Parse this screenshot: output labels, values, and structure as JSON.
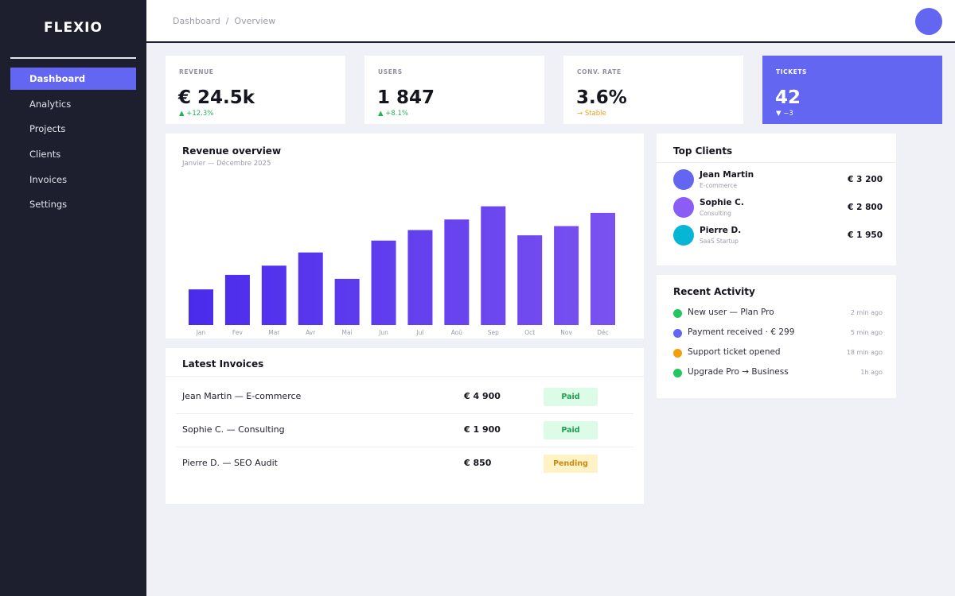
{
  "app": {
    "name": "FLEXIO"
  },
  "colors": {
    "accent": "#6366f1",
    "sidebar": "#1d1f2e",
    "positive": "#22b05a",
    "neutral": "#f0a020",
    "bar_gradient_start": "#4a2bec",
    "bar_gradient_end": "#7a52f0"
  },
  "sidebar": {
    "items": [
      {
        "label": "Dashboard",
        "active": true
      },
      {
        "label": "Analytics",
        "active": false
      },
      {
        "label": "Projects",
        "active": false
      },
      {
        "label": "Clients",
        "active": false
      },
      {
        "label": "Invoices",
        "active": false
      },
      {
        "label": "Settings",
        "active": false
      }
    ]
  },
  "header": {
    "breadcrumb": [
      "Dashboard",
      "Overview"
    ],
    "breadcrumb_separator": "/"
  },
  "kpis": [
    {
      "label": "REVENUE",
      "value": "€ 24.5k",
      "delta": "▲ +12.3%",
      "trend": "up"
    },
    {
      "label": "USERS",
      "value": "1 847",
      "delta": "▲ +8.1%",
      "trend": "up"
    },
    {
      "label": "CONV. RATE",
      "value": "3.6%",
      "delta": "→ Stable",
      "trend": "flat"
    },
    {
      "label": "TICKETS",
      "value": "42",
      "delta": "▼ −3",
      "trend": "down"
    }
  ],
  "revenue_card": {
    "title": "Revenue overview",
    "subtitle": "Janvier — Décembre 2025"
  },
  "chart_data": {
    "type": "bar",
    "categories": [
      "Jan",
      "Fev",
      "Mar",
      "Avr",
      "Mai",
      "Jun",
      "Jul",
      "Aoû",
      "Sep",
      "Oct",
      "Nov",
      "Déc"
    ],
    "values": [
      27,
      38,
      45,
      55,
      35,
      64,
      72,
      80,
      90,
      68,
      75,
      85
    ],
    "ylim": [
      0,
      100
    ],
    "title": "",
    "xlabel": "",
    "ylabel": "",
    "grid": false,
    "legend": "none"
  },
  "top_clients": {
    "title": "Top Clients",
    "items": [
      {
        "name": "Jean Martin",
        "type": "E-commerce",
        "amount": "€ 3 200",
        "color": "#6366f1"
      },
      {
        "name": "Sophie C.",
        "type": "Consulting",
        "amount": "€ 2 800",
        "color": "#8b5cf6"
      },
      {
        "name": "Pierre D.",
        "type": "SaaS Startup",
        "amount": "€ 1 950",
        "color": "#06b6d4"
      }
    ]
  },
  "recent_activity": {
    "title": "Recent Activity",
    "items": [
      {
        "text": "New user — Plan Pro",
        "time": "2 min ago",
        "color": "#22c55e"
      },
      {
        "text": "Payment received · € 299",
        "time": "5 min ago",
        "color": "#6366f1"
      },
      {
        "text": "Support ticket opened",
        "time": "18 min ago",
        "color": "#f59e0b"
      },
      {
        "text": "Upgrade Pro → Business",
        "time": "1h ago",
        "color": "#22c55e"
      }
    ]
  },
  "invoices": {
    "title": "Latest Invoices",
    "rows": [
      {
        "description": "Jean Martin — E-commerce",
        "amount": "€ 4 900",
        "status": "Paid"
      },
      {
        "description": "Sophie C. — Consulting",
        "amount": "€ 1 900",
        "status": "Paid"
      },
      {
        "description": "Pierre D. — SEO Audit",
        "amount": "€ 850",
        "status": "Pending"
      }
    ]
  }
}
